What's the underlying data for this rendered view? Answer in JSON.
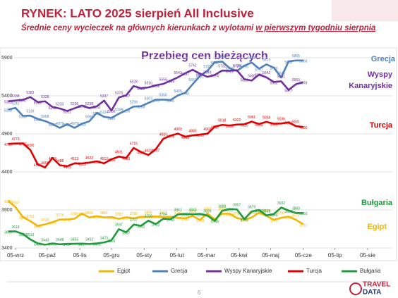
{
  "header": {
    "title": "RYNEK: LATO 2025 sierpień All Inclusive",
    "subtitle": "Średnie ceny wycieczek na głównych kierunkach z wylotami ",
    "subtitle_emphasis": "w pierwszym tygodniu sierpnia"
  },
  "chart_data": {
    "type": "line",
    "title": "Przebieg cen bieżących",
    "x": [
      -7,
      0,
      7,
      14,
      21,
      28,
      35,
      42,
      49,
      56,
      63,
      70,
      77,
      84,
      91,
      98,
      105,
      112,
      119,
      126,
      133,
      140,
      147,
      154,
      161,
      168,
      175,
      182,
      189,
      196,
      203,
      210,
      217,
      224,
      231,
      238,
      245,
      252,
      259,
      266,
      273
    ],
    "xlim": [
      0,
      334
    ],
    "xticks": [
      {
        "value": 0,
        "label": "05-wrz"
      },
      {
        "value": 30,
        "label": "05-paź"
      },
      {
        "value": 61,
        "label": "05-lis"
      },
      {
        "value": 91,
        "label": "05-gru"
      },
      {
        "value": 122,
        "label": "05-sty"
      },
      {
        "value": 153,
        "label": "05-lut"
      },
      {
        "value": 181,
        "label": "05-mar"
      },
      {
        "value": 212,
        "label": "05-kwi"
      },
      {
        "value": 242,
        "label": "05-maj"
      },
      {
        "value": 273,
        "label": "05-cze"
      },
      {
        "value": 303,
        "label": "05-lip"
      },
      {
        "value": 334,
        "label": "05-sie"
      }
    ],
    "ylim": [
      3400,
      5900
    ],
    "yticks": [
      3400,
      3900,
      4400,
      4900,
      5400,
      5900
    ],
    "grid": true,
    "legend": "bottom",
    "series": [
      {
        "name": "Egipt",
        "color": "#f2b705",
        "values": [
          4020,
          3937,
          3806,
          3753,
          3690,
          3710,
          3739,
          3774,
          3776,
          3785,
          3852,
          3801,
          3817,
          3801,
          3806,
          3783,
          3804,
          3790,
          3810,
          3806,
          3814,
          3807,
          3811,
          3795,
          3790,
          3820,
          3769,
          3852,
          3776,
          3850,
          3850,
          3794,
          3773,
          3800,
          3865,
          3822,
          3770,
          3797,
          3813,
          3771,
          3711
        ]
      },
      {
        "name": "Grecja",
        "color": "#4f81bd",
        "values": [
          5218,
          5241,
          5136,
          5139,
          5096,
          5068,
          5029,
          4979,
          5027,
          4979,
          5033,
          5065,
          5175,
          5124,
          5110,
          5164,
          5209,
          5258,
          5263,
          5307,
          5349,
          5350,
          5345,
          5405,
          5440,
          5552,
          5661,
          5729,
          5842,
          5850,
          5765,
          5727,
          5795,
          5838,
          5757,
          5813,
          5770,
          5641,
          5852,
          5865,
          5865
        ]
      },
      {
        "name": "Wyspy Kanaryjskie",
        "color": "#7030a0",
        "values": [
          5328,
          5338,
          5347,
          5383,
          5318,
          5328,
          5253,
          5233,
          5201,
          5236,
          5272,
          5238,
          5261,
          5337,
          5206,
          5378,
          5407,
          5528,
          5500,
          5510,
          5538,
          5556,
          5599,
          5643,
          5697,
          5742,
          5690,
          5649,
          5674,
          5732,
          5729,
          5736,
          5619,
          5600,
          5680,
          5642,
          5582,
          5591,
          5477,
          5553,
          5578
        ]
      },
      {
        "name": "Turcja",
        "color": "#e00000",
        "values": [
          4769,
          4773,
          4775,
          4690,
          4500,
          4458,
          4583,
          4488,
          4475,
          4513,
          4511,
          4522,
          4539,
          4512,
          4566,
          4601,
          4583,
          4715,
          4661,
          4622,
          4697,
          4833,
          4876,
          4903,
          4863,
          4880,
          4890,
          4902,
          4996,
          5018,
          5010,
          5022,
          5026,
          5061,
          5030,
          5058,
          5033,
          5036,
          5051,
          5001,
          4990
        ]
      },
      {
        "name": "Bułgaria",
        "color": "#1e9b3c",
        "values": [
          3618,
          3618,
          3584,
          3513,
          3461,
          3443,
          3460,
          3448,
          3454,
          3455,
          3457,
          3452,
          3460,
          3473,
          3501,
          3647,
          3607,
          3707,
          3692,
          3759,
          3713,
          3784,
          3780,
          3841,
          3848,
          3843,
          3849,
          3826,
          3756,
          3888,
          3912,
          3907,
          3780,
          3879,
          3900,
          3828,
          3846,
          3932,
          3892,
          3860,
          3860
        ]
      }
    ]
  },
  "page_number": "6",
  "logo": {
    "line1": "TRAVEL",
    "line2": "DATA"
  }
}
